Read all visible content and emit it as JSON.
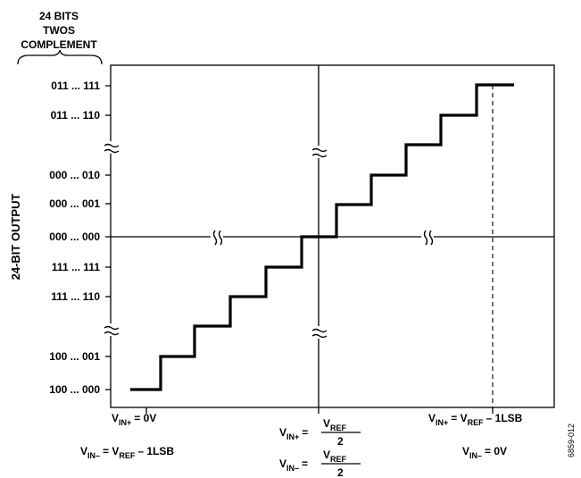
{
  "header": {
    "line1": "24 BITS",
    "line2": "TWOS",
    "line3": "COMPLEMENT"
  },
  "y_axis_label": "24-BIT OUTPUT",
  "codes": [
    "011 ... 111",
    "011 ... 110",
    "000 ... 010",
    "000 ... 001",
    "000 ... 000",
    "111 ... 111",
    "111 ... 110",
    "100 ... 001",
    "100 ... 000"
  ],
  "bottom": {
    "left": {
      "vin_plus": "= 0V",
      "vin_minus": "= V",
      "vin_minus_sub": "REF",
      "vin_minus_tail": "– 1LSB"
    },
    "center": {
      "vref_num": "V",
      "vref_sub": "REF",
      "den": "2"
    },
    "right": {
      "vin_plus": "= V",
      "vin_plus_sub": "REF",
      "vin_plus_tail": "– 1LSB",
      "vin_minus": "= 0V"
    },
    "sym_V": "V",
    "sub_in_plus": "IN+",
    "sub_in_minus": "IN–",
    "eq": "="
  },
  "figure_id": "6859-012"
}
